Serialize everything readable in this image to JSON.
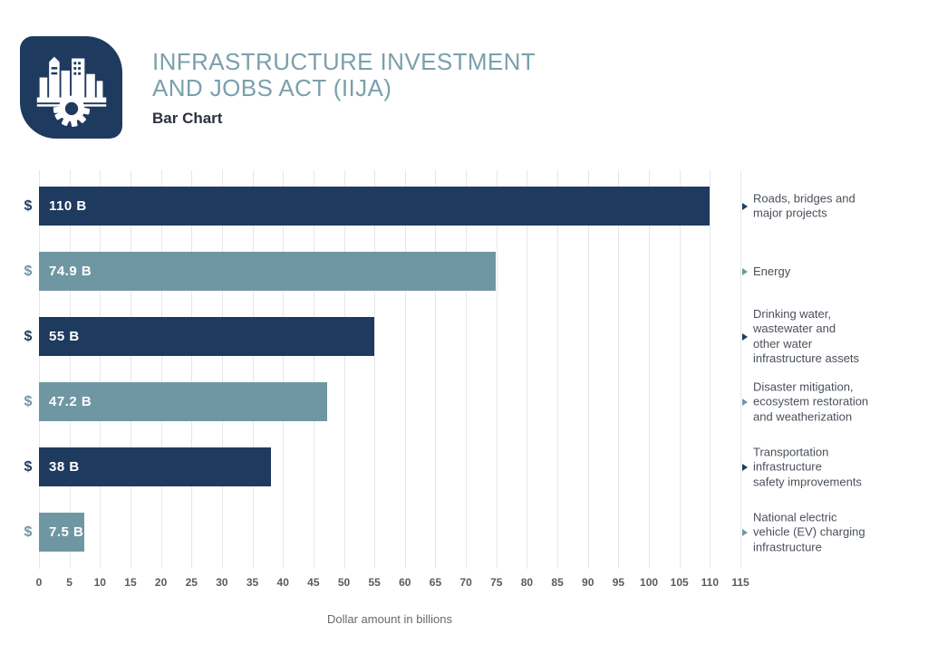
{
  "header": {
    "title_line1": "INFRASTRUCTURE INVESTMENT",
    "title_line2": "AND JOBS ACT (IIJA)",
    "subtitle": "Bar Chart",
    "logo_icon": "buildings-and-gear-icon"
  },
  "colors": {
    "navy": "#1F3A5F",
    "teal": "#6F97A3",
    "title_teal": "#7AA0AC",
    "grid": "#E4E7EA",
    "white": "#FFFFFF"
  },
  "chart_data": {
    "type": "bar",
    "orientation": "horizontal",
    "title": "Infrastructure Investment and Jobs Act (IIJA) — Bar Chart",
    "xlabel": "Dollar amount in billions",
    "xlim": [
      0,
      115
    ],
    "x_ticks": [
      0,
      5,
      10,
      15,
      20,
      25,
      30,
      35,
      40,
      45,
      50,
      55,
      60,
      65,
      70,
      75,
      80,
      85,
      90,
      95,
      100,
      105,
      110,
      115
    ],
    "grid": true,
    "legend": false,
    "unit_prefix": "$",
    "categories": [
      "Roads, bridges and major projects",
      "Energy",
      "Drinking water, wastewater and other water infrastructure assets",
      "Disaster mitigation, ecosystem restoration and weatherization",
      "Transportation infrastructure safety improvements",
      "National electric vehicle (EV) charging infrastructure"
    ],
    "values": [
      110,
      74.9,
      55,
      47.2,
      38,
      7.5
    ],
    "bars": [
      {
        "value": 110,
        "value_label": "110 B",
        "color": "#1F3A5F",
        "label_lines": [
          "Roads, bridges and",
          "major projects"
        ]
      },
      {
        "value": 74.9,
        "value_label": "74.9 B",
        "color": "#6F97A3",
        "label_lines": [
          "Energy"
        ]
      },
      {
        "value": 55,
        "value_label": "55 B",
        "color": "#1F3A5F",
        "label_lines": [
          "Drinking water,",
          "wastewater and",
          "other water",
          "infrastructure assets"
        ]
      },
      {
        "value": 47.2,
        "value_label": "47.2 B",
        "color": "#6F97A3",
        "label_lines": [
          "Disaster mitigation,",
          "ecosystem restoration",
          "and weatherization"
        ]
      },
      {
        "value": 38,
        "value_label": "38 B",
        "color": "#1F3A5F",
        "label_lines": [
          "Transportation",
          "infrastructure",
          "safety improvements"
        ]
      },
      {
        "value": 7.5,
        "value_label": "7.5 B",
        "color": "#6F97A3",
        "label_lines": [
          "National electric",
          "vehicle (EV) charging",
          "infrastructure"
        ]
      }
    ]
  }
}
